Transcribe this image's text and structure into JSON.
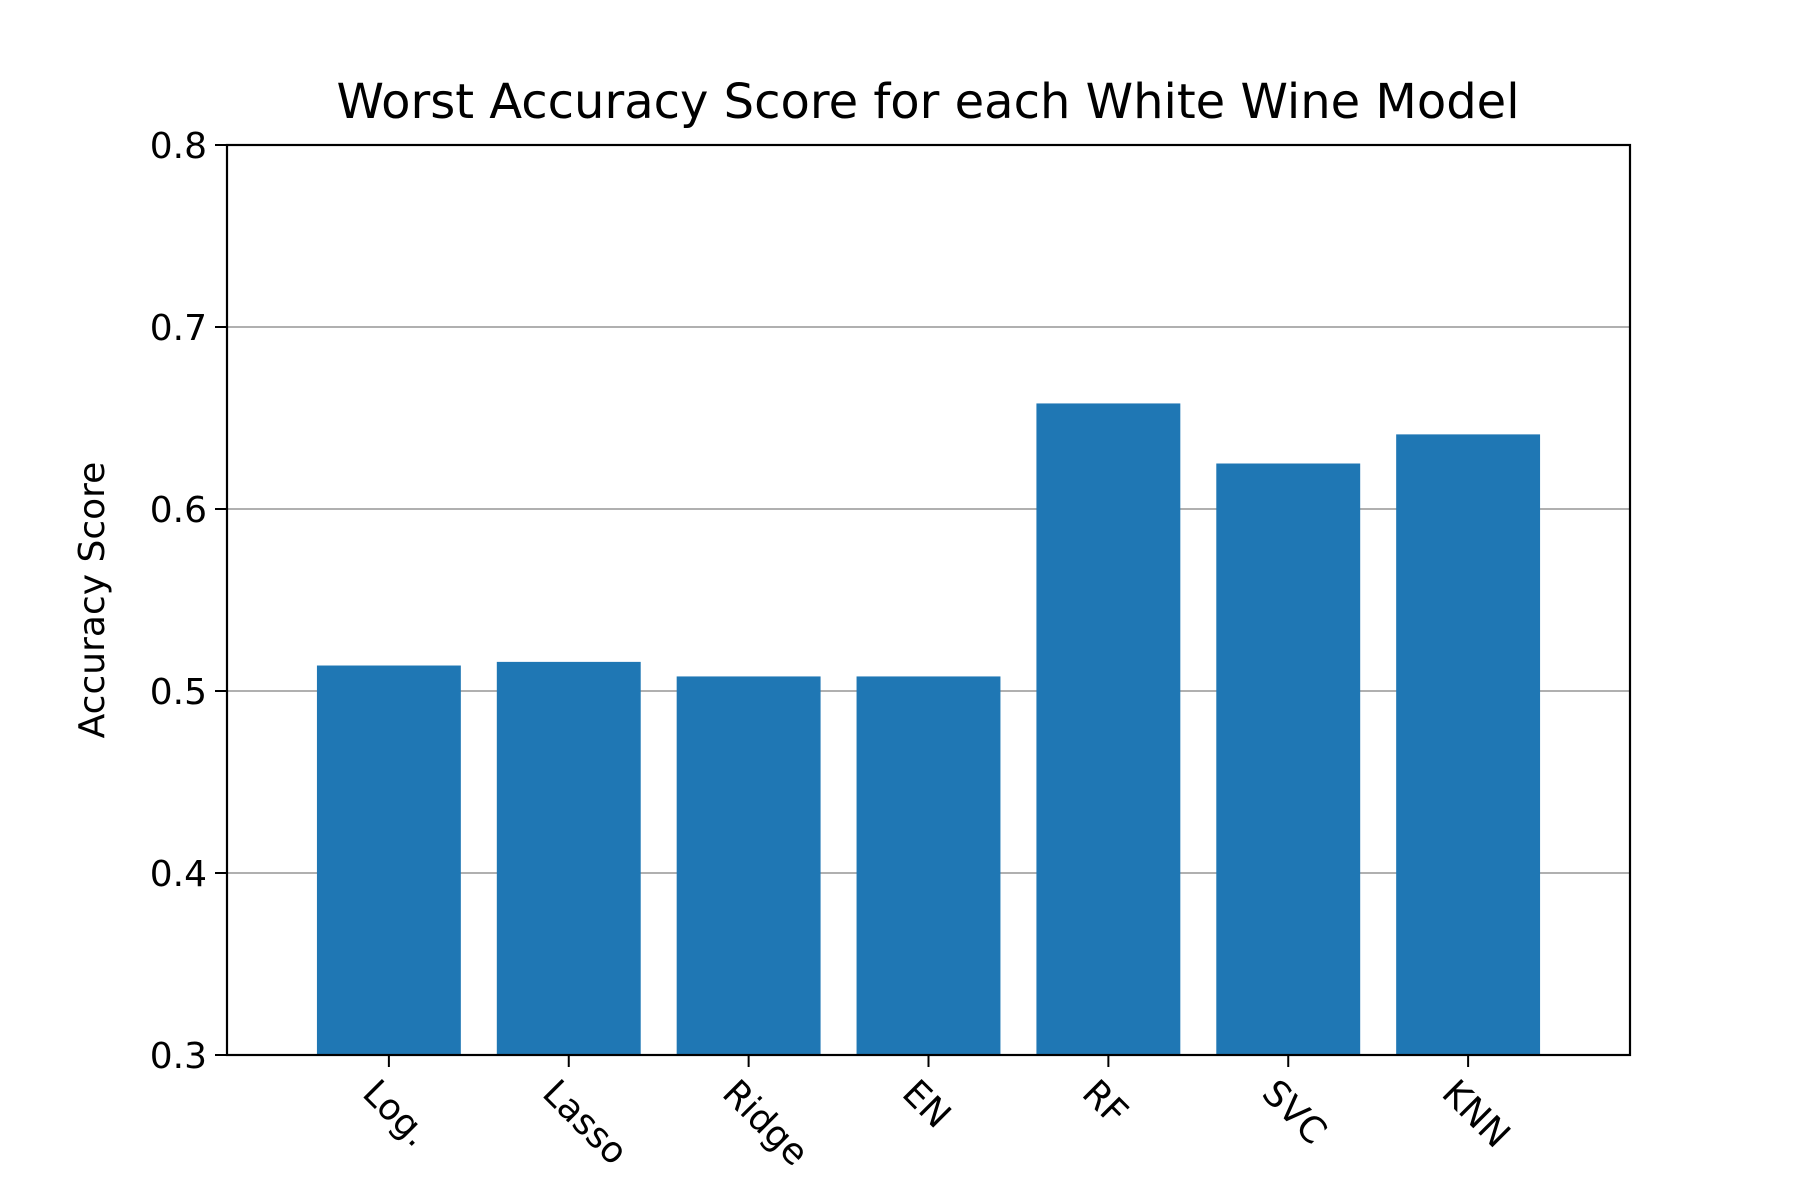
{
  "chart_data": {
    "type": "bar",
    "title": "Worst Accuracy Score for each White Wine Model",
    "xlabel": "",
    "ylabel": "Accuracy Score",
    "categories": [
      "Log.",
      "Lasso",
      "Ridge",
      "EN",
      "RF",
      "SVC",
      "KNN"
    ],
    "values": [
      0.514,
      0.516,
      0.508,
      0.508,
      0.658,
      0.625,
      0.641
    ],
    "ylim": [
      0.3,
      0.8
    ],
    "yticks": [
      "0.3",
      "0.4",
      "0.5",
      "0.6",
      "0.7",
      "0.8"
    ],
    "grid": "y",
    "legend": "none",
    "bar_color": "#1f77b4",
    "grid_color": "#b0b0b0",
    "x_tick_rotation_deg": 45
  }
}
